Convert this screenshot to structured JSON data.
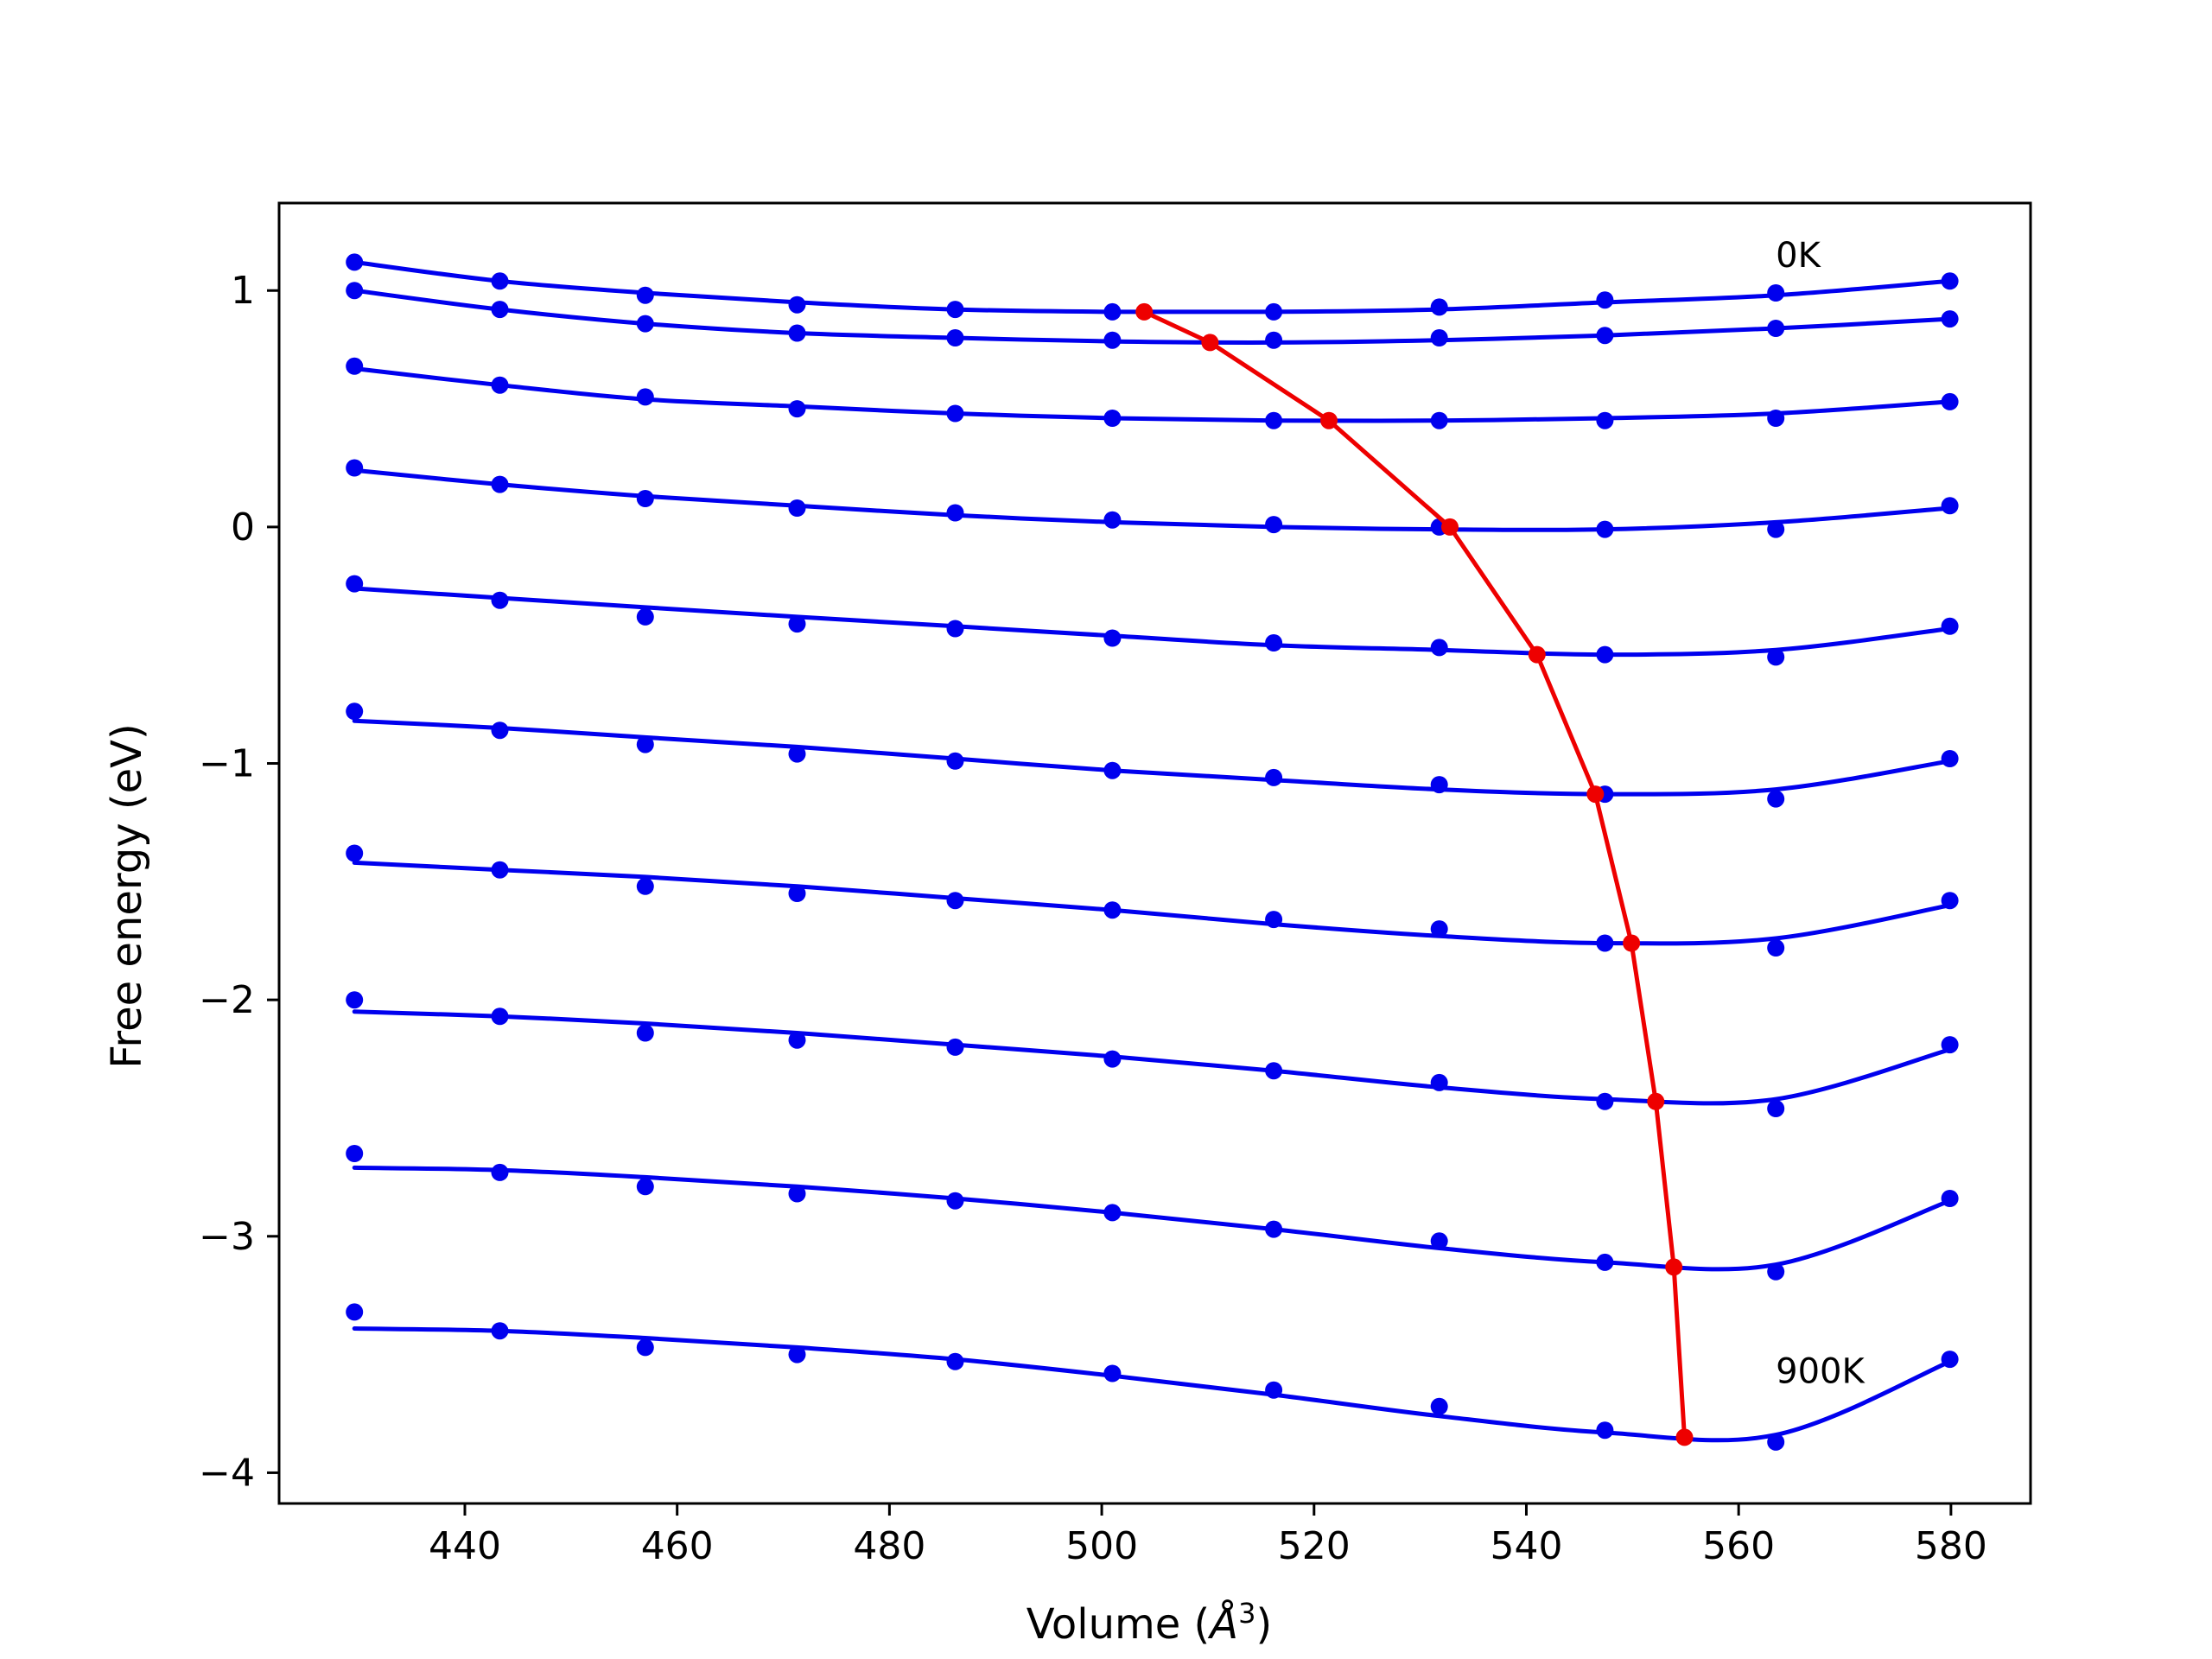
{
  "chart_data": {
    "type": "line",
    "xlabel_main": "Volume (",
    "xlabel_sym": "Å",
    "xlabel_exp": "3",
    "xlabel_close": ")",
    "ylabel": "Free energy (eV)",
    "xlim": [
      422.5,
      587.5
    ],
    "ylim": [
      -4.13,
      1.37
    ],
    "xticks": [
      440,
      460,
      480,
      500,
      520,
      540,
      560,
      580
    ],
    "yticks": [
      1,
      0,
      -1,
      -2,
      -3,
      -4
    ],
    "xtick_labels": [
      "440",
      "460",
      "480",
      "500",
      "520",
      "540",
      "560",
      "580"
    ],
    "ytick_labels": [
      "1",
      "0",
      "−1",
      "−2",
      "−3",
      "−4"
    ],
    "grid": false,
    "annotations": [
      {
        "text": "0K",
        "x": 563.5,
        "y": 1.1
      },
      {
        "text": "900K",
        "x": 563.5,
        "y": -3.62
      }
    ],
    "series_color": "#0000ee",
    "min_color": "#ee0000",
    "volumes": [
      429.6,
      443.3,
      457.0,
      471.3,
      486.2,
      501.0,
      516.2,
      531.8,
      547.4,
      563.5,
      579.9
    ],
    "series": [
      {
        "points": [
          1.12,
          1.04,
          0.98,
          0.94,
          0.92,
          0.91,
          0.91,
          0.93,
          0.96,
          0.99,
          1.04
        ],
        "fit": [
          [
            429.6,
            1.12
          ],
          [
            443.3,
            1.04
          ],
          [
            457.0,
            0.99
          ],
          [
            471.3,
            0.95
          ],
          [
            486.2,
            0.92
          ],
          [
            501.0,
            0.91
          ],
          [
            516.2,
            0.91
          ],
          [
            531.8,
            0.92
          ],
          [
            547.4,
            0.95
          ],
          [
            563.5,
            0.98
          ],
          [
            579.9,
            1.04
          ]
        ]
      },
      {
        "points": [
          1.0,
          0.92,
          0.86,
          0.82,
          0.8,
          0.79,
          0.79,
          0.8,
          0.81,
          0.84,
          0.88
        ],
        "fit": [
          [
            429.6,
            1.0
          ],
          [
            443.3,
            0.92
          ],
          [
            457.0,
            0.86
          ],
          [
            471.3,
            0.82
          ],
          [
            486.2,
            0.8
          ],
          [
            501.0,
            0.785
          ],
          [
            516.2,
            0.78
          ],
          [
            531.8,
            0.79
          ],
          [
            547.4,
            0.81
          ],
          [
            563.5,
            0.84
          ],
          [
            579.9,
            0.88
          ]
        ]
      },
      {
        "points": [
          0.68,
          0.6,
          0.55,
          0.5,
          0.48,
          0.46,
          0.45,
          0.45,
          0.45,
          0.46,
          0.53
        ],
        "fit": [
          [
            429.6,
            0.67
          ],
          [
            443.3,
            0.6
          ],
          [
            457.0,
            0.54
          ],
          [
            471.3,
            0.51
          ],
          [
            486.2,
            0.48
          ],
          [
            501.0,
            0.46
          ],
          [
            516.2,
            0.45
          ],
          [
            531.8,
            0.45
          ],
          [
            547.4,
            0.46
          ],
          [
            563.5,
            0.48
          ],
          [
            579.9,
            0.53
          ]
        ]
      },
      {
        "points": [
          0.25,
          0.18,
          0.12,
          0.08,
          0.06,
          0.03,
          0.01,
          0.0,
          -0.01,
          -0.01,
          0.09
        ],
        "fit": [
          [
            429.6,
            0.24
          ],
          [
            443.3,
            0.18
          ],
          [
            457.0,
            0.13
          ],
          [
            471.3,
            0.09
          ],
          [
            486.2,
            0.05
          ],
          [
            501.0,
            0.02
          ],
          [
            516.2,
            0.0
          ],
          [
            531.8,
            -0.01
          ],
          [
            547.4,
            -0.01
          ],
          [
            563.5,
            0.02
          ],
          [
            579.9,
            0.08
          ]
        ]
      },
      {
        "points": [
          -0.24,
          -0.31,
          -0.38,
          -0.41,
          -0.43,
          -0.47,
          -0.49,
          -0.51,
          -0.54,
          -0.55,
          -0.42
        ],
        "fit": [
          [
            429.6,
            -0.26
          ],
          [
            443.3,
            -0.3
          ],
          [
            457.0,
            -0.34
          ],
          [
            471.3,
            -0.38
          ],
          [
            486.2,
            -0.42
          ],
          [
            501.0,
            -0.46
          ],
          [
            516.2,
            -0.5
          ],
          [
            531.8,
            -0.52
          ],
          [
            547.4,
            -0.54
          ],
          [
            563.5,
            -0.52
          ],
          [
            579.9,
            -0.43
          ]
        ]
      },
      {
        "points": [
          -0.78,
          -0.86,
          -0.92,
          -0.96,
          -0.99,
          -1.03,
          -1.06,
          -1.09,
          -1.13,
          -1.15,
          -0.98
        ],
        "fit": [
          [
            429.6,
            -0.82
          ],
          [
            443.3,
            -0.85
          ],
          [
            457.0,
            -0.89
          ],
          [
            471.3,
            -0.93
          ],
          [
            486.2,
            -0.98
          ],
          [
            501.0,
            -1.03
          ],
          [
            516.2,
            -1.07
          ],
          [
            531.8,
            -1.11
          ],
          [
            547.4,
            -1.13
          ],
          [
            563.5,
            -1.11
          ],
          [
            579.9,
            -0.99
          ]
        ]
      },
      {
        "points": [
          -1.38,
          -1.45,
          -1.52,
          -1.55,
          -1.58,
          -1.62,
          -1.66,
          -1.7,
          -1.76,
          -1.78,
          -1.58
        ],
        "fit": [
          [
            429.6,
            -1.42
          ],
          [
            443.3,
            -1.45
          ],
          [
            457.0,
            -1.48
          ],
          [
            471.3,
            -1.52
          ],
          [
            486.2,
            -1.57
          ],
          [
            501.0,
            -1.62
          ],
          [
            516.2,
            -1.68
          ],
          [
            531.8,
            -1.73
          ],
          [
            547.4,
            -1.76
          ],
          [
            563.5,
            -1.74
          ],
          [
            579.9,
            -1.6
          ]
        ]
      },
      {
        "points": [
          -2.0,
          -2.07,
          -2.14,
          -2.17,
          -2.2,
          -2.25,
          -2.3,
          -2.35,
          -2.43,
          -2.46,
          -2.19
        ],
        "fit": [
          [
            429.6,
            -2.05
          ],
          [
            443.3,
            -2.07
          ],
          [
            457.0,
            -2.1
          ],
          [
            471.3,
            -2.14
          ],
          [
            486.2,
            -2.19
          ],
          [
            501.0,
            -2.24
          ],
          [
            516.2,
            -2.3
          ],
          [
            531.8,
            -2.37
          ],
          [
            547.4,
            -2.42
          ],
          [
            563.5,
            -2.42
          ],
          [
            579.9,
            -2.21
          ]
        ]
      },
      {
        "points": [
          -2.65,
          -2.73,
          -2.79,
          -2.82,
          -2.85,
          -2.9,
          -2.97,
          -3.02,
          -3.11,
          -3.15,
          -2.84
        ],
        "fit": [
          [
            429.6,
            -2.71
          ],
          [
            443.3,
            -2.72
          ],
          [
            457.0,
            -2.75
          ],
          [
            471.3,
            -2.79
          ],
          [
            486.2,
            -2.84
          ],
          [
            501.0,
            -2.9
          ],
          [
            516.2,
            -2.97
          ],
          [
            531.8,
            -3.05
          ],
          [
            547.4,
            -3.11
          ],
          [
            563.5,
            -3.12
          ],
          [
            579.9,
            -2.85
          ]
        ]
      },
      {
        "points": [
          -3.32,
          -3.4,
          -3.47,
          -3.5,
          -3.53,
          -3.58,
          -3.65,
          -3.72,
          -3.82,
          -3.87,
          -3.52
        ],
        "fit": [
          [
            429.6,
            -3.39
          ],
          [
            443.3,
            -3.4
          ],
          [
            457.0,
            -3.43
          ],
          [
            471.3,
            -3.47
          ],
          [
            486.2,
            -3.52
          ],
          [
            501.0,
            -3.59
          ],
          [
            516.2,
            -3.67
          ],
          [
            531.8,
            -3.76
          ],
          [
            547.4,
            -3.83
          ],
          [
            563.5,
            -3.84
          ],
          [
            579.9,
            -3.53
          ]
        ]
      }
    ],
    "minimum_curve": [
      [
        504.0,
        0.91
      ],
      [
        510.2,
        0.78
      ],
      [
        521.4,
        0.45
      ],
      [
        532.8,
        0.0
      ],
      [
        541.0,
        -0.54
      ],
      [
        546.5,
        -1.13
      ],
      [
        549.9,
        -1.76
      ],
      [
        552.2,
        -2.43
      ],
      [
        553.9,
        -3.13
      ],
      [
        554.9,
        -3.85
      ]
    ]
  }
}
